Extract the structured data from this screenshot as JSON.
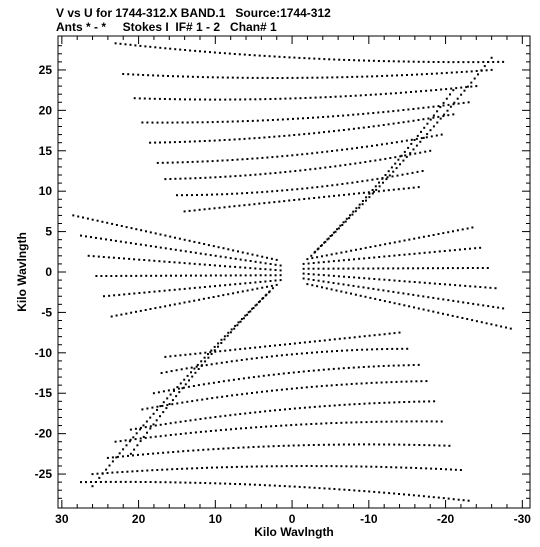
{
  "header": {
    "line1": "V vs U for 1744-312.X BAND.1   Source:1744-312",
    "line2": "Ants * - *     Stokes I  IF# 1 - 2   Chan# 1"
  },
  "chart_data": {
    "type": "scatter",
    "title": "V vs U for 1744-312.X BAND.1   Source:1744-312",
    "subtitle": "Ants * - *     Stokes I  IF# 1 - 2   Chan# 1",
    "xlabel": "Kilo Wavlngth",
    "ylabel": "Kilo Wavlngth",
    "xlim": [
      30.5,
      -31
    ],
    "ylim": [
      -29.2,
      29.2
    ],
    "x_ticks": [
      30,
      20,
      10,
      0,
      -10,
      -20,
      -30
    ],
    "x_tick_labels": [
      "30",
      "20",
      "10",
      "0",
      "-10",
      "-20",
      "-30"
    ],
    "y_ticks": [
      25,
      20,
      15,
      10,
      5,
      0,
      -5,
      -10,
      -15,
      -20,
      -25
    ],
    "y_tick_labels": [
      "25",
      "20",
      "15",
      "10",
      "5",
      "0",
      "-5",
      "-10",
      "-15",
      "-20",
      "-25"
    ],
    "grid": false,
    "legend": "none",
    "marker_color": "#000000",
    "series": [
      {
        "tracks": [
          {
            "from": [
              23.0,
              28.3
            ],
            "to": [
              -27.5,
              26.0
            ]
          },
          {
            "from": [
              22.0,
              24.5
            ],
            "to": [
              -26.0,
              25.0
            ]
          },
          {
            "from": [
              20.5,
              21.5
            ],
            "to": [
              -24.0,
              23.0
            ]
          },
          {
            "from": [
              19.5,
              18.5
            ],
            "to": [
              -23.0,
              21.0
            ]
          },
          {
            "from": [
              18.5,
              16.0
            ],
            "to": [
              -21.0,
              19.5
            ]
          },
          {
            "from": [
              17.5,
              13.5
            ],
            "to": [
              -19.5,
              17.0
            ]
          },
          {
            "from": [
              16.5,
              11.5
            ],
            "to": [
              -18.0,
              15.0
            ]
          },
          {
            "from": [
              15.0,
              9.5
            ],
            "to": [
              -17.0,
              12.5
            ]
          },
          {
            "from": [
              14.0,
              7.5
            ],
            "to": [
              -16.5,
              10.5
            ]
          },
          {
            "from": [
              -23.0,
              -28.3
            ],
            "to": [
              27.5,
              -26.0
            ]
          },
          {
            "from": [
              -22.0,
              -24.5
            ],
            "to": [
              26.0,
              -25.0
            ]
          },
          {
            "from": [
              -20.5,
              -21.5
            ],
            "to": [
              24.0,
              -23.0
            ]
          },
          {
            "from": [
              -19.5,
              -18.5
            ],
            "to": [
              23.0,
              -21.0
            ]
          },
          {
            "from": [
              -18.5,
              -16.0
            ],
            "to": [
              21.0,
              -19.5
            ]
          },
          {
            "from": [
              -17.5,
              -13.5
            ],
            "to": [
              19.5,
              -17.0
            ]
          },
          {
            "from": [
              -16.5,
              -11.5
            ],
            "to": [
              18.0,
              -15.0
            ]
          },
          {
            "from": [
              -15.0,
              -9.5
            ],
            "to": [
              17.0,
              -12.5
            ]
          },
          {
            "from": [
              -14.0,
              -7.5
            ],
            "to": [
              16.5,
              -10.5
            ]
          },
          {
            "from": [
              28.5,
              7.0
            ],
            "to": [
              2.0,
              1.5
            ]
          },
          {
            "from": [
              27.5,
              4.5
            ],
            "to": [
              1.5,
              0.8
            ]
          },
          {
            "from": [
              26.5,
              2.0
            ],
            "to": [
              1.5,
              0.2
            ]
          },
          {
            "from": [
              25.5,
              -0.5
            ],
            "to": [
              1.5,
              -0.4
            ]
          },
          {
            "from": [
              24.5,
              -3.0
            ],
            "to": [
              1.5,
              -1.0
            ]
          },
          {
            "from": [
              23.5,
              -5.5
            ],
            "to": [
              2.0,
              -1.6
            ]
          },
          {
            "from": [
              -28.5,
              -7.0
            ],
            "to": [
              -2.0,
              -1.5
            ]
          },
          {
            "from": [
              -27.5,
              -4.5
            ],
            "to": [
              -1.5,
              -0.8
            ]
          },
          {
            "from": [
              -26.5,
              -2.0
            ],
            "to": [
              -1.5,
              -0.2
            ]
          },
          {
            "from": [
              -25.5,
              0.5
            ],
            "to": [
              -1.5,
              0.4
            ]
          },
          {
            "from": [
              -24.5,
              3.0
            ],
            "to": [
              -1.5,
              1.0
            ]
          },
          {
            "from": [
              -23.5,
              5.5
            ],
            "to": [
              -2.0,
              1.6
            ]
          },
          {
            "from": [
              26.0,
              -26.5
            ],
            "to": [
              3.0,
              -2.5
            ]
          },
          {
            "from": [
              21.0,
              -22.5
            ],
            "to": [
              2.5,
              -2.0
            ]
          },
          {
            "from": [
              -26.0,
              26.5
            ],
            "to": [
              -3.0,
              2.5
            ]
          },
          {
            "from": [
              -21.0,
              22.5
            ],
            "to": [
              -2.5,
              2.0
            ]
          }
        ]
      }
    ]
  }
}
